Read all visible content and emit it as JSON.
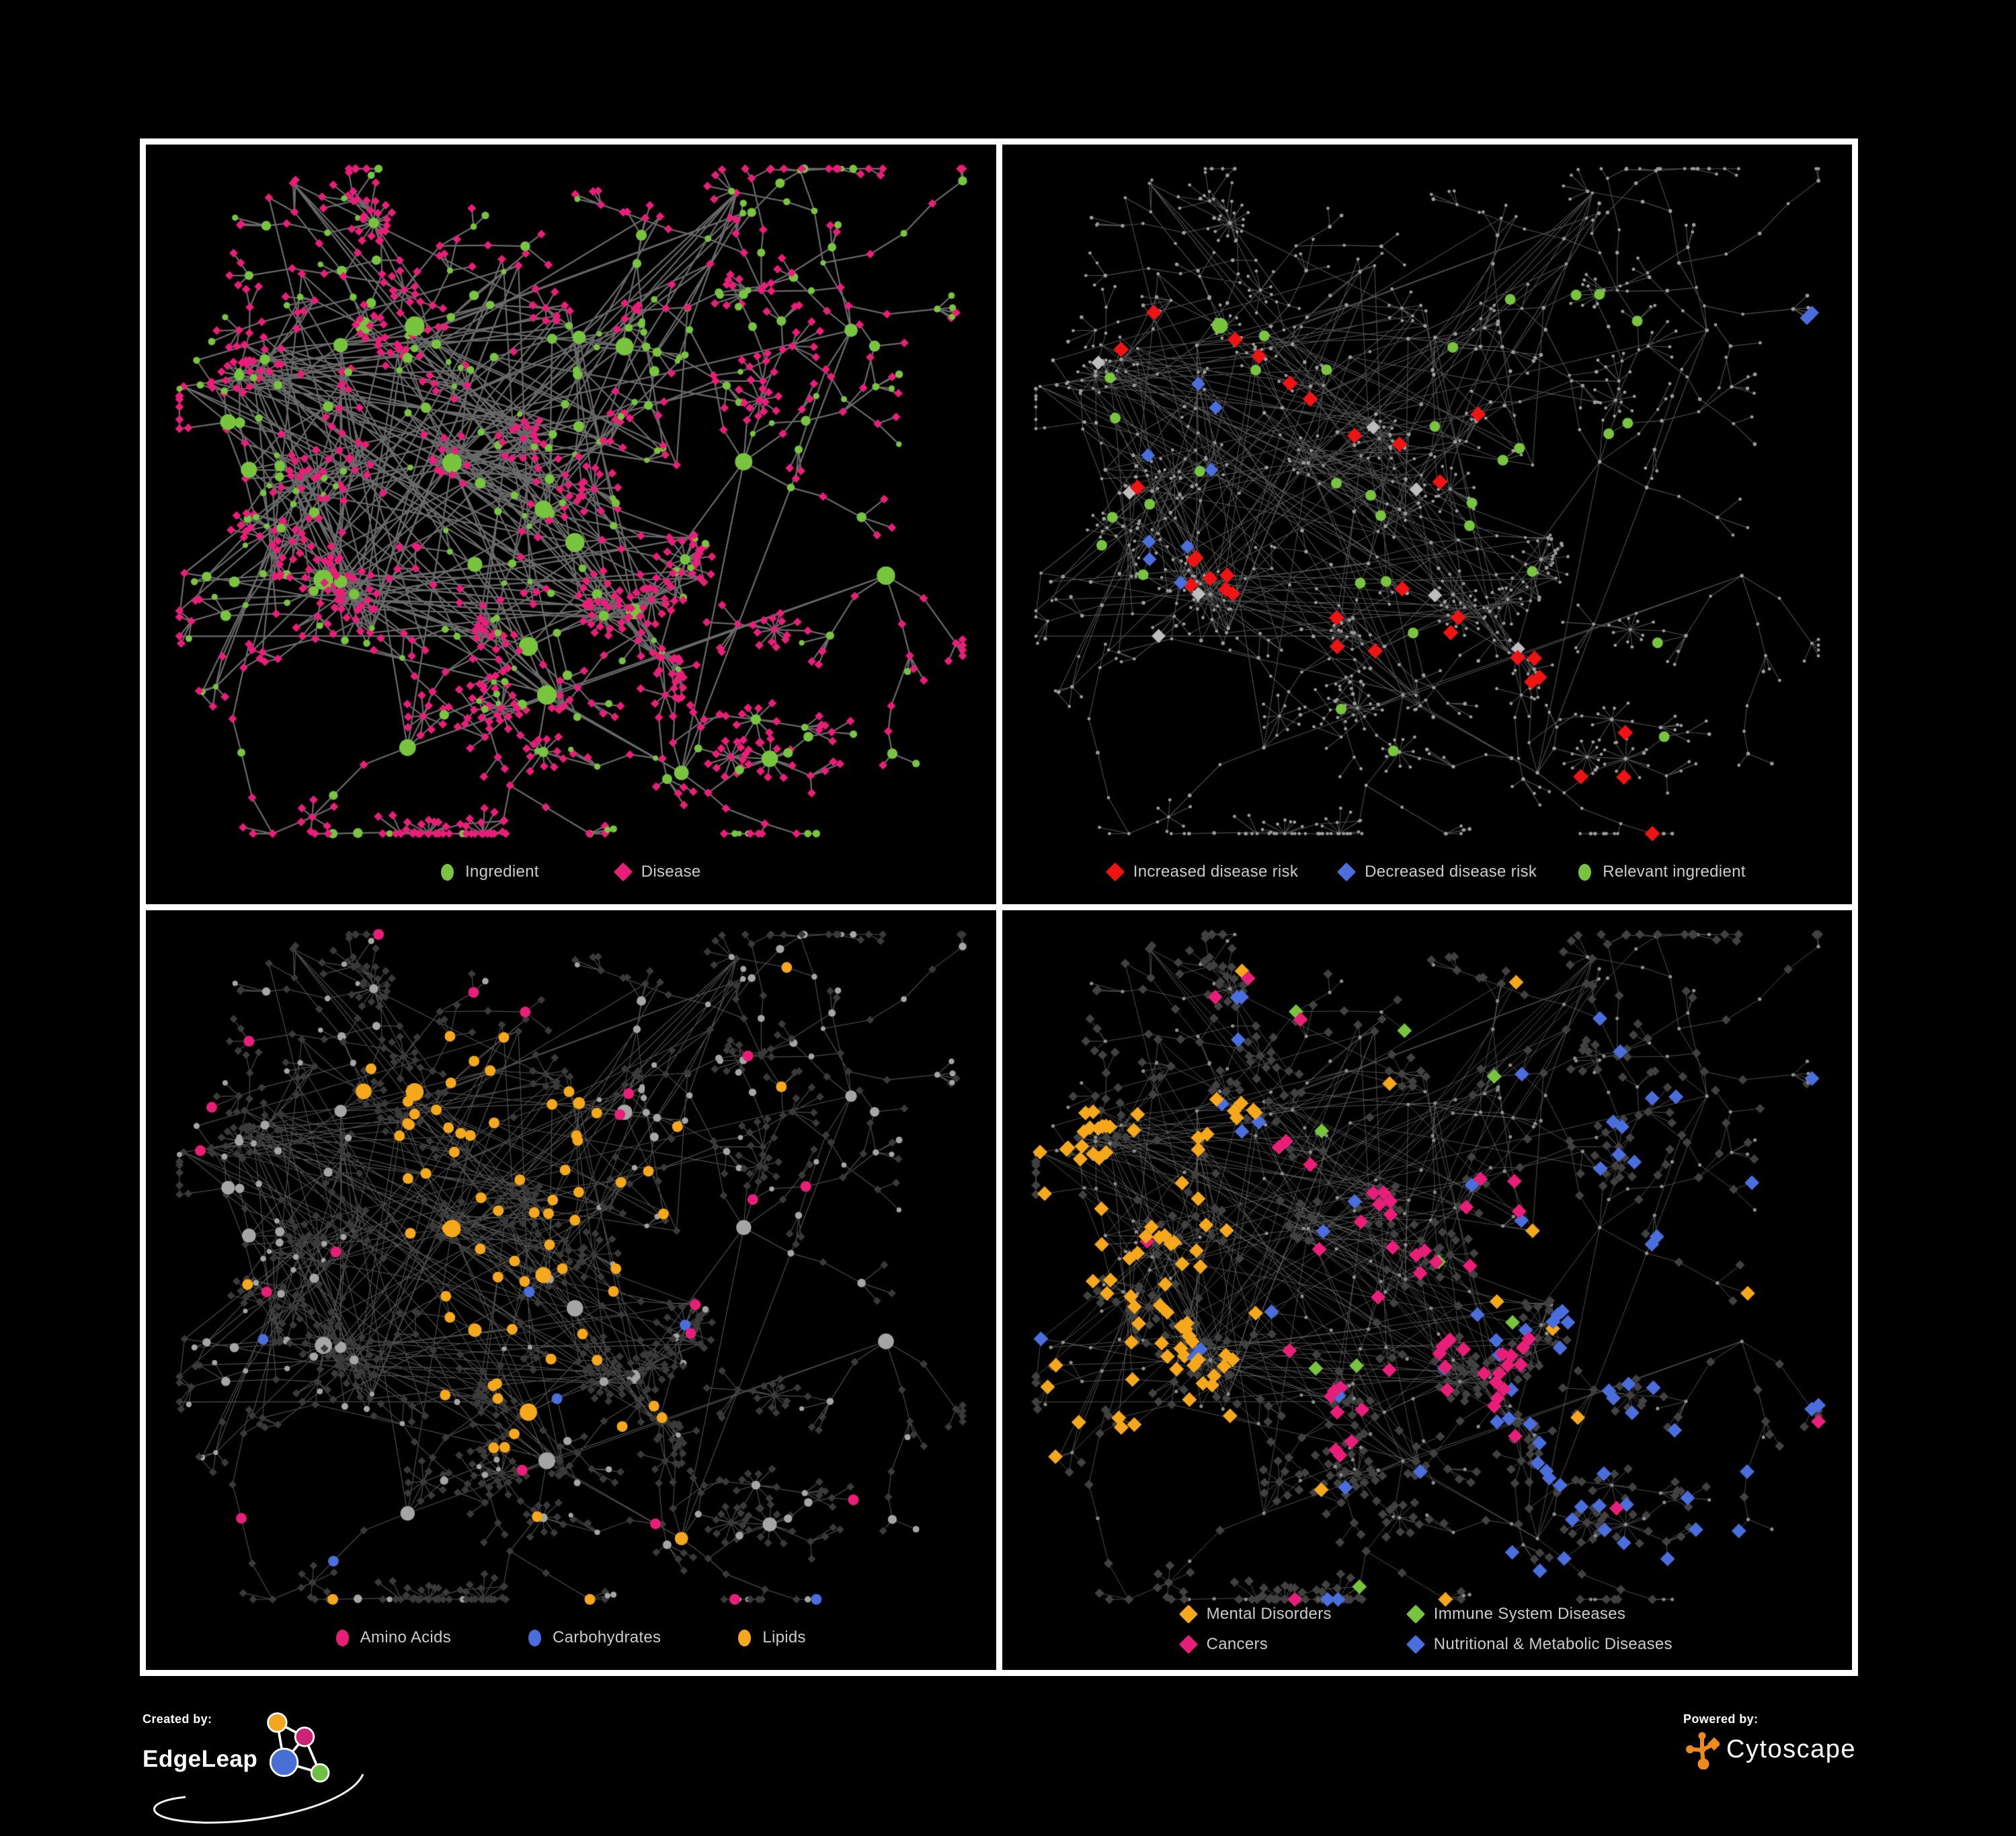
{
  "page": {
    "background": "#000000",
    "panel_background": "#000000",
    "frame_color": "#FFFFFF",
    "legend_text_color": "#CBCBCB"
  },
  "footer": {
    "created_by": {
      "label": "Created by:",
      "brand": "EdgeLeap",
      "logo": {
        "node_colors": [
          "#F2A51F",
          "#CE2277",
          "#4A6FD4",
          "#6FBF44"
        ],
        "line_color": "#FFFFFF"
      }
    },
    "powered_by": {
      "label": "Powered by:",
      "brand": "Cytoscape",
      "logo_color": "#EF8A1D"
    }
  },
  "network_layout": {
    "seed": 1337,
    "highlight_seeds": [
      101,
      202,
      303,
      404
    ]
  },
  "chart_data": [
    {
      "id": "ingredient-disease-network",
      "position": "top-left",
      "type": "network",
      "legend": [
        {
          "label": "Ingredient",
          "shape": "circle",
          "color": "#79C43F"
        },
        {
          "label": "Disease",
          "shape": "diamond",
          "color": "#E91E78"
        }
      ],
      "style": {
        "edge_color": "#7B7B7B",
        "edge_width": 2.3,
        "edge_alpha": 0.85,
        "circle": {
          "color": "#79C43F",
          "mode": "scaled",
          "scale": 1.1,
          "min": 4
        },
        "diamond": {
          "color": "#E91E78",
          "mode": "shape",
          "size": 6.5
        }
      },
      "highlights": []
    },
    {
      "id": "disease-risk-network",
      "position": "top-right",
      "type": "network",
      "legend": [
        {
          "label": "Increased disease risk",
          "shape": "diamond",
          "color": "#EE1414"
        },
        {
          "label": "Decreased disease risk",
          "shape": "diamond",
          "color": "#4A6EDB"
        },
        {
          "label": "Relevant ingredient",
          "shape": "circle",
          "color": "#79C43F"
        }
      ],
      "style": {
        "edge_color": "#6D6D6D",
        "edge_width": 1.1,
        "edge_alpha": 0.75,
        "circle": {
          "color": "#9C9C9C",
          "mode": "dot",
          "size": 2.8
        },
        "diamond": {
          "color": "#9C9C9C",
          "mode": "dot",
          "size": 2.4
        }
      },
      "highlights": [
        {
          "shape": "diamond",
          "color": "#EE1414",
          "size": 11.5,
          "count": 26,
          "region": [
            0.1,
            0.72,
            0.22,
            0.72
          ]
        },
        {
          "shape": "diamond",
          "color": "#EE1414",
          "size": 11.5,
          "count": 6,
          "region": [
            0.6,
            0.95,
            0.55,
            0.92
          ]
        },
        {
          "shape": "diamond",
          "color": "#4A6EDB",
          "size": 10.5,
          "count": 8,
          "region": [
            0.1,
            0.3,
            0.3,
            0.6
          ]
        },
        {
          "shape": "diamond",
          "color": "#4A6EDB",
          "size": 10.5,
          "count": 2,
          "region": [
            0.85,
            0.99,
            0.1,
            0.24
          ]
        },
        {
          "shape": "diamond",
          "color": "#BDBDBD",
          "size": 10.5,
          "count": 8,
          "region": [
            0.1,
            0.62,
            0.28,
            0.68
          ]
        },
        {
          "shape": "circle",
          "color": "#79C43F",
          "size": 8,
          "count": 34,
          "region": [
            0.1,
            0.82,
            0.18,
            0.8
          ]
        }
      ]
    },
    {
      "id": "macronutrient-class-network",
      "position": "bottom-left",
      "type": "network",
      "legend": [
        {
          "label": "Amino Acids",
          "shape": "circle",
          "color": "#E91E78"
        },
        {
          "label": "Carbohydrates",
          "shape": "circle",
          "color": "#4A6EDB"
        },
        {
          "label": "Lipids",
          "shape": "circle",
          "color": "#F6A81C"
        }
      ],
      "style": {
        "edge_color": "#686868",
        "edge_width": 1.2,
        "edge_alpha": 0.75,
        "circle": {
          "color": "#A5A5A5",
          "mode": "scaled",
          "scale": 0.95,
          "min": 3.5
        },
        "diamond": {
          "color": "#3A3A3A",
          "mode": "shape",
          "size": 6
        }
      },
      "highlights": [
        {
          "shape": "circle",
          "color": "#F6A81C",
          "size": 8,
          "count": 42,
          "region": [
            0.25,
            0.52,
            0.16,
            0.42
          ]
        },
        {
          "shape": "circle",
          "color": "#F6A81C",
          "size": 8,
          "count": 28,
          "region": [
            0.28,
            0.62,
            0.42,
            0.72
          ]
        },
        {
          "shape": "circle",
          "color": "#F6A81C",
          "size": 8,
          "count": 12,
          "region": [
            0.05,
            0.95,
            0.05,
            0.92
          ]
        },
        {
          "shape": "circle",
          "color": "#4A6EDB",
          "size": 8,
          "count": 10,
          "region": [
            0.28,
            0.5,
            0.18,
            0.45
          ]
        },
        {
          "shape": "circle",
          "color": "#4A6EDB",
          "size": 8,
          "count": 6,
          "region": [
            0.05,
            0.95,
            0.4,
            0.95
          ]
        },
        {
          "shape": "circle",
          "color": "#E91E78",
          "size": 8,
          "count": 20,
          "region": [
            0.03,
            0.97,
            0.03,
            0.95
          ]
        }
      ]
    },
    {
      "id": "disease-class-network",
      "position": "bottom-right",
      "type": "network",
      "legend": [
        {
          "label": "Mental Disorders",
          "shape": "diamond",
          "color": "#F6A81C"
        },
        {
          "label": "Immune System Diseases",
          "shape": "diamond",
          "color": "#79C43F"
        },
        {
          "label": "Cancers",
          "shape": "diamond",
          "color": "#E91E78"
        },
        {
          "label": "Nutritional & Metabolic Diseases",
          "shape": "diamond",
          "color": "#4A6EDB"
        }
      ],
      "style": {
        "edge_color": "#707070",
        "edge_width": 1.0,
        "edge_alpha": 0.7,
        "circle": {
          "color": "#8E8E8E",
          "mode": "dot",
          "size": 2.6
        },
        "diamond": {
          "color": "#414141",
          "mode": "shape",
          "size": 7
        }
      },
      "highlights": [
        {
          "shape": "diamond",
          "color": "#F6A81C",
          "size": 11,
          "count": 80,
          "region": [
            0.04,
            0.3,
            0.25,
            0.75
          ]
        },
        {
          "shape": "diamond",
          "color": "#F6A81C",
          "size": 11,
          "count": 15,
          "region": [
            0.05,
            0.95,
            0.05,
            0.92
          ]
        },
        {
          "shape": "diamond",
          "color": "#E91E78",
          "size": 11,
          "count": 45,
          "region": [
            0.33,
            0.62,
            0.33,
            0.7
          ]
        },
        {
          "shape": "diamond",
          "color": "#E91E78",
          "size": 11,
          "count": 12,
          "region": [
            0.05,
            0.97,
            0.05,
            0.95
          ]
        },
        {
          "shape": "diamond",
          "color": "#4A6EDB",
          "size": 11,
          "count": 55,
          "region": [
            0.58,
            0.97,
            0.08,
            0.9
          ]
        },
        {
          "shape": "diamond",
          "color": "#4A6EDB",
          "size": 11,
          "count": 20,
          "region": [
            0.04,
            0.6,
            0.05,
            0.95
          ]
        },
        {
          "shape": "diamond",
          "color": "#79C43F",
          "size": 11,
          "count": 9,
          "region": [
            0.1,
            0.9,
            0.05,
            0.9
          ]
        }
      ]
    }
  ]
}
